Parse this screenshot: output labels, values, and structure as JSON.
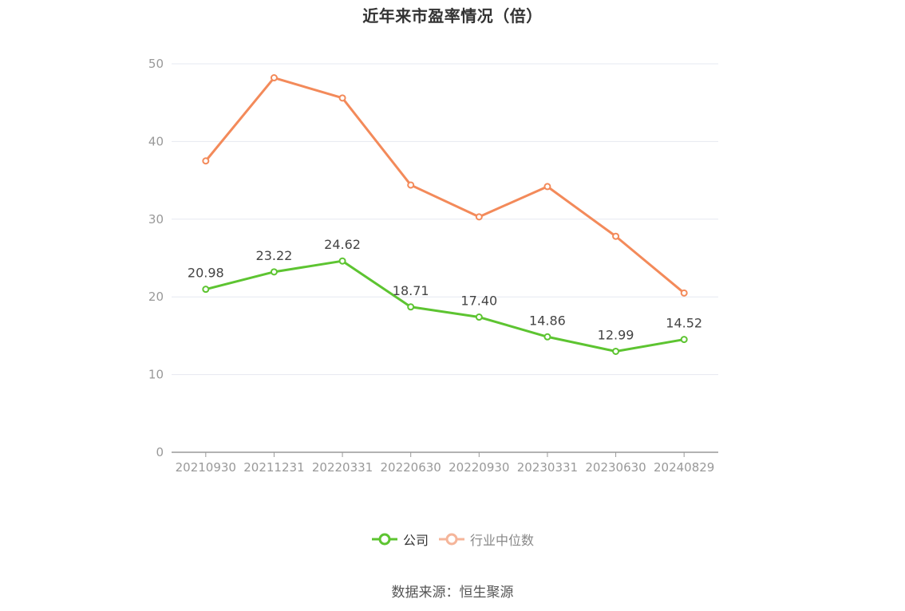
{
  "chart_data": {
    "type": "line",
    "title": "近年来市盈率情况（倍）",
    "categories": [
      "20210930",
      "20211231",
      "20220331",
      "20220630",
      "20220930",
      "20230331",
      "20230630",
      "20240829"
    ],
    "ylim": [
      0,
      50
    ],
    "yticks": [
      0,
      10,
      20,
      30,
      40,
      50
    ],
    "grid": true,
    "legend_position": "bottom-center",
    "series": [
      {
        "name": "公司",
        "color": "#5dc431",
        "values": [
          20.98,
          23.22,
          24.62,
          18.71,
          17.4,
          14.86,
          12.99,
          14.52
        ],
        "labels": [
          "20.98",
          "23.22",
          "24.62",
          "18.71",
          "17.40",
          "14.86",
          "12.99",
          "14.52"
        ]
      },
      {
        "name": "行业中位数",
        "color": "#f38a5a",
        "values": [
          37.5,
          48.2,
          45.6,
          34.4,
          30.3,
          34.2,
          27.8,
          20.5
        ]
      }
    ]
  },
  "legend": {
    "company_label": "公司",
    "industry_label": "行业中位数",
    "company_color": "#5dc431",
    "industry_color": "#f38a5a",
    "industry_legend_color": "#f5b59a"
  },
  "source": "数据来源：恒生聚源"
}
